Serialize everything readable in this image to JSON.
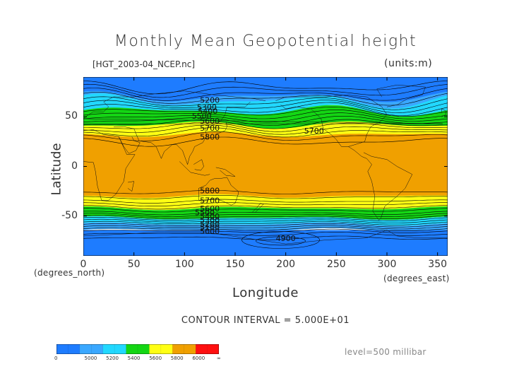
{
  "title": "Monthly Mean Geopotential height",
  "source_file": "[HGT_2003-04_NCEP.nc]",
  "units_label": "(units:m)",
  "y_axis": {
    "label": "Latitude",
    "units_note": "(degrees_north)",
    "ticks": [
      {
        "value": 50,
        "label": "50"
      },
      {
        "value": 0,
        "label": "0"
      },
      {
        "value": -50,
        "label": "-50"
      }
    ],
    "range": [
      -90,
      90
    ]
  },
  "x_axis": {
    "label": "Longitude",
    "units_note": "(degrees_east)",
    "ticks": [
      {
        "value": 0,
        "label": "0"
      },
      {
        "value": 50,
        "label": "50"
      },
      {
        "value": 100,
        "label": "100"
      },
      {
        "value": 150,
        "label": "150"
      },
      {
        "value": 200,
        "label": "200"
      },
      {
        "value": 250,
        "label": "250"
      },
      {
        "value": 300,
        "label": "300"
      },
      {
        "value": 350,
        "label": "350"
      }
    ],
    "range": [
      0,
      360
    ]
  },
  "contour_interval_text": "CONTOUR INTERVAL = 5.000E+01",
  "level_text": "level=500 millibar",
  "contour_labels": [
    {
      "text": "5200",
      "lon": 125,
      "lat": 64
    },
    {
      "text": "5300",
      "lon": 122,
      "lat": 57
    },
    {
      "text": "5400",
      "lon": 123,
      "lat": 53
    },
    {
      "text": "5500",
      "lon": 117,
      "lat": 48
    },
    {
      "text": "5600",
      "lon": 125,
      "lat": 43
    },
    {
      "text": "5700",
      "lon": 125,
      "lat": 36
    },
    {
      "text": "5800",
      "lon": 125,
      "lat": 27
    },
    {
      "text": "5700",
      "lon": 228,
      "lat": 33
    },
    {
      "text": "5800",
      "lon": 125,
      "lat": -27
    },
    {
      "text": "5700",
      "lon": 125,
      "lat": -37
    },
    {
      "text": "5600",
      "lon": 125,
      "lat": -45
    },
    {
      "text": "5500",
      "lon": 120,
      "lat": -49
    },
    {
      "text": "5400",
      "lon": 125,
      "lat": -53
    },
    {
      "text": "5300",
      "lon": 125,
      "lat": -57
    },
    {
      "text": "5200",
      "lon": 125,
      "lat": -61
    },
    {
      "text": "5100",
      "lon": 125,
      "lat": -64
    },
    {
      "text": "5000",
      "lon": 125,
      "lat": -68
    },
    {
      "text": "4900",
      "lon": 200,
      "lat": -75
    }
  ],
  "colorbar": {
    "labels": [
      "0",
      "5000",
      "5200",
      "5400",
      "5600",
      "5800",
      "6000",
      "∞"
    ],
    "colors": [
      "#1e7cff",
      "#1e7cff",
      "#3aa8ff",
      "#3aa8ff",
      "#22d8ff",
      "#22d8ff",
      "#14d614",
      "#14d614",
      "#ffff14",
      "#ffff14",
      "#f0a000",
      "#f0a000",
      "#ff1010",
      "#ff1010"
    ]
  },
  "chart_data": {
    "type": "contour map",
    "field": "geopotential height",
    "level_mb": 500,
    "contour_interval": 50,
    "bands_by_latitude": [
      {
        "lat": 90,
        "value": 5050
      },
      {
        "lat": 75,
        "value": 5200
      },
      {
        "lat": 60,
        "value": 5350
      },
      {
        "lat": 50,
        "value": 5500
      },
      {
        "lat": 40,
        "value": 5650
      },
      {
        "lat": 30,
        "value": 5780
      },
      {
        "lat": 20,
        "value": 5850
      },
      {
        "lat": 0,
        "value": 5880
      },
      {
        "lat": -20,
        "value": 5860
      },
      {
        "lat": -30,
        "value": 5800
      },
      {
        "lat": -40,
        "value": 5650
      },
      {
        "lat": -50,
        "value": 5450
      },
      {
        "lat": -60,
        "value": 5200
      },
      {
        "lat": -70,
        "value": 5000
      },
      {
        "lat": -80,
        "value": 4950
      },
      {
        "lat": -90,
        "value": 5000
      }
    ]
  }
}
